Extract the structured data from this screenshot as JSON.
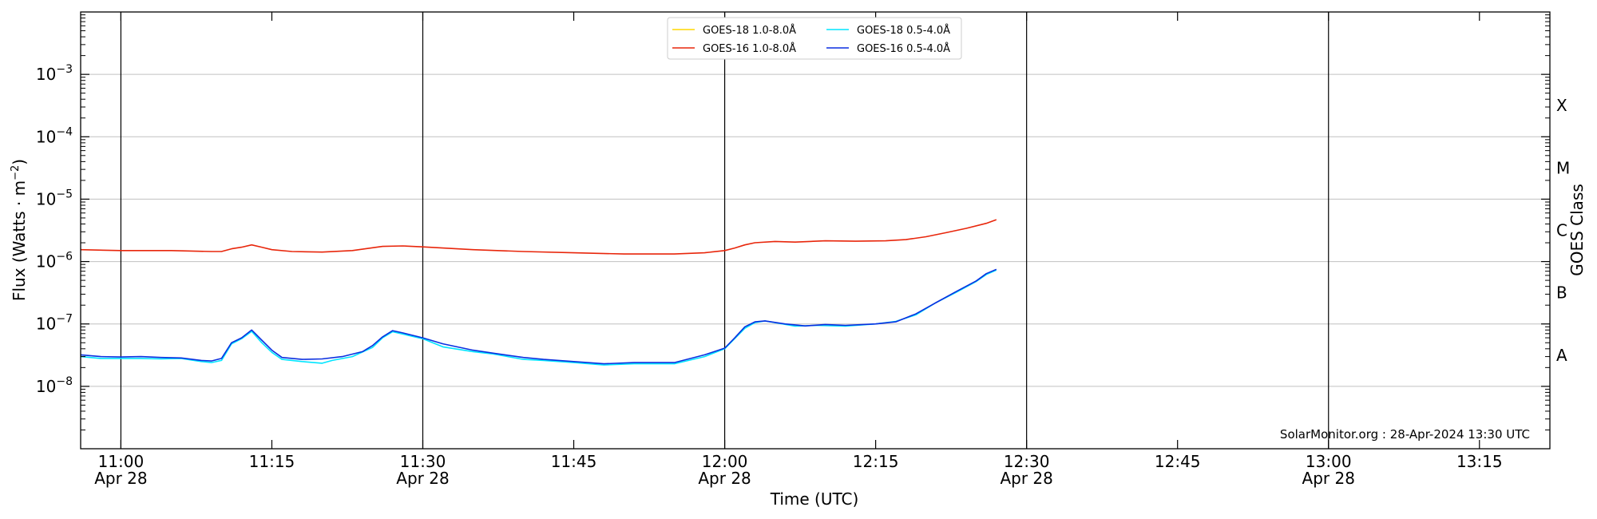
{
  "chart_data": {
    "type": "line",
    "title": "",
    "xlabel": "Time (UTC)",
    "ylabel_prefix": "Flux (Watts · m",
    "ylabel_exp": "−2",
    "ylabel_suffix": ")",
    "right_label": "GOES Class",
    "y_scale": "log",
    "ylim": [
      1e-09,
      0.01
    ],
    "xlim": [
      "10:56",
      "13:22"
    ],
    "grid": "horizontal at decades",
    "legend": "top-center",
    "credit": "SolarMonitor.org : 28-Apr-2024 13:30 UTC",
    "x_ticks": [
      {
        "t": "11:00",
        "label": "11:00",
        "date": "Apr 28"
      },
      {
        "t": "11:15",
        "label": "11:15",
        "date": ""
      },
      {
        "t": "11:30",
        "label": "11:30",
        "date": "Apr 28"
      },
      {
        "t": "11:45",
        "label": "11:45",
        "date": ""
      },
      {
        "t": "12:00",
        "label": "12:00",
        "date": "Apr 28"
      },
      {
        "t": "12:15",
        "label": "12:15",
        "date": ""
      },
      {
        "t": "12:30",
        "label": "12:30",
        "date": "Apr 28"
      },
      {
        "t": "12:45",
        "label": "12:45",
        "date": ""
      },
      {
        "t": "13:00",
        "label": "13:00",
        "date": "Apr 28"
      },
      {
        "t": "13:15",
        "label": "13:15",
        "date": ""
      }
    ],
    "vertical_lines": [
      "11:00",
      "11:30",
      "12:00",
      "12:30",
      "13:00"
    ],
    "y_ticks": [
      {
        "value": 1e-08,
        "base": "10",
        "exp": "−8"
      },
      {
        "value": 1e-07,
        "base": "10",
        "exp": "−7"
      },
      {
        "value": 1e-06,
        "base": "10",
        "exp": "−6"
      },
      {
        "value": 1e-05,
        "base": "10",
        "exp": "−5"
      },
      {
        "value": 0.0001,
        "base": "10",
        "exp": "−4"
      },
      {
        "value": 0.001,
        "base": "10",
        "exp": "−3"
      }
    ],
    "goes_classes": [
      {
        "label": "A",
        "value": 3.16e-08
      },
      {
        "label": "B",
        "value": 3.16e-07
      },
      {
        "label": "C",
        "value": 3.16e-06
      },
      {
        "label": "M",
        "value": 3.16e-05
      },
      {
        "label": "X",
        "value": 0.000316
      }
    ],
    "series": [
      {
        "name": "GOES-18 1.0-8.0Å",
        "color": "#FFD700",
        "points": []
      },
      {
        "name": "GOES-16 1.0-8.0Å",
        "color": "#E8260B",
        "points": [
          [
            "10:56",
            1.55e-06
          ],
          [
            "11:00",
            1.5e-06
          ],
          [
            "11:05",
            1.5e-06
          ],
          [
            "11:09",
            1.45e-06
          ],
          [
            "11:10",
            1.45e-06
          ],
          [
            "11:11",
            1.6e-06
          ],
          [
            "11:12",
            1.7e-06
          ],
          [
            "11:13",
            1.85e-06
          ],
          [
            "11:14",
            1.7e-06
          ],
          [
            "11:15",
            1.55e-06
          ],
          [
            "11:17",
            1.45e-06
          ],
          [
            "11:20",
            1.42e-06
          ],
          [
            "11:23",
            1.5e-06
          ],
          [
            "11:26",
            1.75e-06
          ],
          [
            "11:28",
            1.78e-06
          ],
          [
            "11:30",
            1.72e-06
          ],
          [
            "11:35",
            1.55e-06
          ],
          [
            "11:40",
            1.45e-06
          ],
          [
            "11:45",
            1.38e-06
          ],
          [
            "11:50",
            1.32e-06
          ],
          [
            "11:55",
            1.32e-06
          ],
          [
            "11:58",
            1.38e-06
          ],
          [
            "12:00",
            1.5e-06
          ],
          [
            "12:01",
            1.65e-06
          ],
          [
            "12:02",
            1.85e-06
          ],
          [
            "12:03",
            2e-06
          ],
          [
            "12:05",
            2.1e-06
          ],
          [
            "12:07",
            2.05e-06
          ],
          [
            "12:10",
            2.15e-06
          ],
          [
            "12:13",
            2.12e-06
          ],
          [
            "12:16",
            2.15e-06
          ],
          [
            "12:18",
            2.25e-06
          ],
          [
            "12:20",
            2.5e-06
          ],
          [
            "12:22",
            2.9e-06
          ],
          [
            "12:24",
            3.4e-06
          ],
          [
            "12:26",
            4.1e-06
          ],
          [
            "12:27",
            4.7e-06
          ]
        ]
      },
      {
        "name": "GOES-18 0.5-4.0Å",
        "color": "#00E5FF",
        "points": [
          [
            "10:56",
            3e-08
          ],
          [
            "10:58",
            2.8e-08
          ],
          [
            "11:00",
            2.8e-08
          ],
          [
            "11:02",
            2.8e-08
          ],
          [
            "11:04",
            2.75e-08
          ],
          [
            "11:06",
            2.8e-08
          ],
          [
            "11:08",
            2.5e-08
          ],
          [
            "11:09",
            2.4e-08
          ],
          [
            "11:10",
            2.6e-08
          ],
          [
            "11:11",
            4.8e-08
          ],
          [
            "11:12",
            5.8e-08
          ],
          [
            "11:13",
            7.6e-08
          ],
          [
            "11:14",
            5e-08
          ],
          [
            "11:15",
            3.5e-08
          ],
          [
            "11:16",
            2.7e-08
          ],
          [
            "11:18",
            2.5e-08
          ],
          [
            "11:20",
            2.35e-08
          ],
          [
            "11:21",
            2.6e-08
          ],
          [
            "11:23",
            3e-08
          ],
          [
            "11:25",
            4.2e-08
          ],
          [
            "11:26",
            6e-08
          ],
          [
            "11:27",
            7.5e-08
          ],
          [
            "11:30",
            5.8e-08
          ],
          [
            "11:32",
            4.3e-08
          ],
          [
            "11:35",
            3.6e-08
          ],
          [
            "11:37",
            3.3e-08
          ],
          [
            "11:40",
            2.7e-08
          ],
          [
            "11:42",
            2.6e-08
          ],
          [
            "11:45",
            2.4e-08
          ],
          [
            "11:48",
            2.2e-08
          ],
          [
            "11:51",
            2.3e-08
          ],
          [
            "11:55",
            2.3e-08
          ],
          [
            "11:58",
            3e-08
          ],
          [
            "12:00",
            4e-08
          ],
          [
            "12:02",
            8.5e-08
          ],
          [
            "12:03",
            1.05e-07
          ],
          [
            "12:04",
            1.12e-07
          ],
          [
            "12:05",
            1.05e-07
          ],
          [
            "12:07",
            9.2e-08
          ],
          [
            "12:09",
            9.5e-08
          ],
          [
            "12:12",
            9.2e-08
          ],
          [
            "12:15",
            1e-07
          ],
          [
            "12:17",
            1.1e-07
          ],
          [
            "12:19",
            1.4e-07
          ],
          [
            "12:21",
            2.2e-07
          ],
          [
            "12:23",
            3.2e-07
          ],
          [
            "12:25",
            4.8e-07
          ],
          [
            "12:26",
            6.2e-07
          ],
          [
            "12:27",
            7.3e-07
          ]
        ]
      },
      {
        "name": "GOES-16 0.5-4.0Å",
        "color": "#0A2FE0",
        "points": [
          [
            "10:56",
            3.2e-08
          ],
          [
            "10:58",
            3e-08
          ],
          [
            "11:00",
            2.95e-08
          ],
          [
            "11:02",
            3e-08
          ],
          [
            "11:04",
            2.9e-08
          ],
          [
            "11:06",
            2.85e-08
          ],
          [
            "11:08",
            2.6e-08
          ],
          [
            "11:09",
            2.55e-08
          ],
          [
            "11:10",
            2.8e-08
          ],
          [
            "11:11",
            5e-08
          ],
          [
            "11:12",
            6e-08
          ],
          [
            "11:13",
            8e-08
          ],
          [
            "11:14",
            5.5e-08
          ],
          [
            "11:15",
            3.8e-08
          ],
          [
            "11:16",
            2.9e-08
          ],
          [
            "11:18",
            2.7e-08
          ],
          [
            "11:20",
            2.75e-08
          ],
          [
            "11:22",
            3e-08
          ],
          [
            "11:24",
            3.6e-08
          ],
          [
            "11:25",
            4.5e-08
          ],
          [
            "11:26",
            6.2e-08
          ],
          [
            "11:27",
            7.8e-08
          ],
          [
            "11:28",
            7.2e-08
          ],
          [
            "11:30",
            6e-08
          ],
          [
            "11:32",
            4.8e-08
          ],
          [
            "11:35",
            3.8e-08
          ],
          [
            "11:37",
            3.4e-08
          ],
          [
            "11:40",
            2.9e-08
          ],
          [
            "11:42",
            2.7e-08
          ],
          [
            "11:45",
            2.5e-08
          ],
          [
            "11:48",
            2.3e-08
          ],
          [
            "11:51",
            2.4e-08
          ],
          [
            "11:55",
            2.4e-08
          ],
          [
            "11:58",
            3.2e-08
          ],
          [
            "12:00",
            4.1e-08
          ],
          [
            "12:01",
            6e-08
          ],
          [
            "12:02",
            9e-08
          ],
          [
            "12:03",
            1.08e-07
          ],
          [
            "12:04",
            1.12e-07
          ],
          [
            "12:06",
            1e-07
          ],
          [
            "12:08",
            9.3e-08
          ],
          [
            "12:10",
            9.8e-08
          ],
          [
            "12:12",
            9.5e-08
          ],
          [
            "12:15",
            1e-07
          ],
          [
            "12:17",
            1.08e-07
          ],
          [
            "12:19",
            1.45e-07
          ],
          [
            "12:21",
            2.2e-07
          ],
          [
            "12:23",
            3.3e-07
          ],
          [
            "12:25",
            4.9e-07
          ],
          [
            "12:26",
            6.4e-07
          ],
          [
            "12:27",
            7.5e-07
          ]
        ]
      }
    ]
  }
}
